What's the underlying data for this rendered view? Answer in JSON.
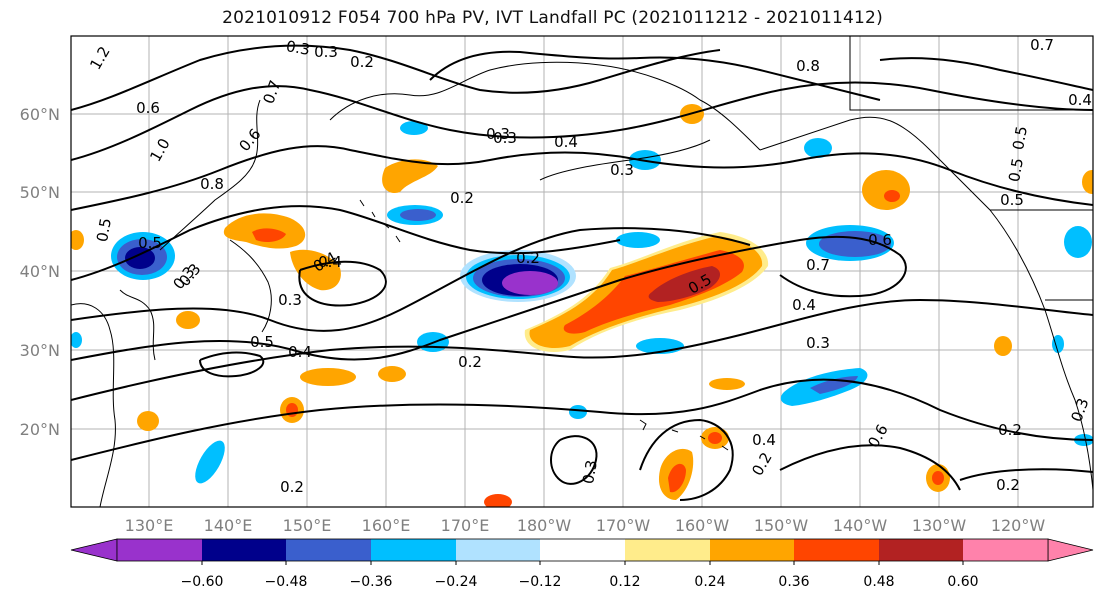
{
  "title": "2021010912 F054 700 hPa PV, IVT Landfall PC (2021011212 - 2021011412)",
  "map": {
    "lat_labels": [
      "60°N",
      "50°N",
      "40°N",
      "30°N",
      "20°N"
    ],
    "lon_labels": [
      "130°E",
      "140°E",
      "150°E",
      "160°E",
      "170°E",
      "180°W",
      "170°W",
      "160°W",
      "150°W",
      "140°W",
      "130°W",
      "120°W"
    ],
    "contour_labels": [
      "1.2",
      "0.3",
      "0.2",
      "0.7",
      "1.0",
      "0.6",
      "0.8",
      "0.5",
      "0.3",
      "0.6",
      "0.5",
      "0.8",
      "0.7",
      "0.4",
      "0.5",
      "0.5",
      "0.5",
      "0.3",
      "0.4",
      "0.3",
      "0.2",
      "0.3",
      "0.5",
      "0.7",
      "0.6",
      "0.4",
      "0.5",
      "0.4",
      "0.2",
      "0.3",
      "0.3",
      "0.4",
      "0.3",
      "0.2",
      "0.3",
      "0.4",
      "0.2",
      "0.2",
      "0.2",
      "0.3",
      "0.4",
      "0.6",
      "0.3",
      "0.2",
      "0.5"
    ]
  },
  "colorbar": {
    "colors": [
      "#9932cc",
      "#00008b",
      "#3a5fcd",
      "#00bfff",
      "#b0e2ff",
      "#ffffff",
      "#ffec8b",
      "#ffa500",
      "#ff4500",
      "#b22222",
      "#ff82ab"
    ],
    "tick_labels": [
      "−0.60",
      "−0.48",
      "−0.36",
      "−0.24",
      "−0.12",
      "0.12",
      "0.24",
      "0.36",
      "0.48",
      "0.60"
    ]
  },
  "legend": {
    "purple": "#9932cc",
    "navy": "#00008b",
    "royal": "#3a5fcd",
    "deepsky": "#00bfff",
    "lightblue": "#b0e2ff",
    "lightyellow": "#ffec8b",
    "orange": "#ffa500",
    "redorange": "#ff4500",
    "firebrick": "#b22222",
    "pink": "#ff82ab"
  }
}
